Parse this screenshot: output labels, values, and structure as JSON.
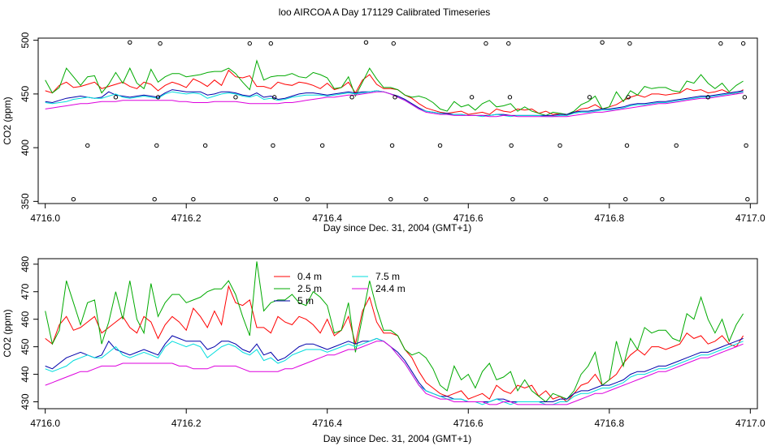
{
  "figure": {
    "title": "loo AIRCOA A  Day 171129  Calibrated Timeseries"
  },
  "chart_data": [
    {
      "type": "scatter",
      "title": "",
      "xlabel": "Day since Dec. 31, 2004 (GMT+1)",
      "ylabel": "CO2 (ppm)",
      "xlim": [
        4715.99,
        4717.01
      ],
      "ylim": [
        348,
        502
      ],
      "xticks": [
        "4716.0",
        "4716.2",
        "4716.4",
        "4716.6",
        "4716.8",
        "4717.0"
      ],
      "yticks": [
        "350",
        "400",
        "450",
        "500"
      ],
      "x": [
        4716.0,
        4716.01,
        4716.02,
        4716.03,
        4716.04,
        4716.05,
        4716.06,
        4716.07,
        4716.08,
        4716.09,
        4716.1,
        4716.11,
        4716.12,
        4716.13,
        4716.14,
        4716.15,
        4716.16,
        4716.17,
        4716.18,
        4716.19,
        4716.2,
        4716.21,
        4716.22,
        4716.23,
        4716.24,
        4716.25,
        4716.26,
        4716.27,
        4716.28,
        4716.29,
        4716.3,
        4716.31,
        4716.32,
        4716.33,
        4716.34,
        4716.35,
        4716.36,
        4716.37,
        4716.38,
        4716.39,
        4716.4,
        4716.41,
        4716.42,
        4716.43,
        4716.44,
        4716.45,
        4716.46,
        4716.47,
        4716.48,
        4716.49,
        4716.5,
        4716.51,
        4716.52,
        4716.53,
        4716.54,
        4716.55,
        4716.56,
        4716.57,
        4716.58,
        4716.59,
        4716.6,
        4716.61,
        4716.62,
        4716.63,
        4716.64,
        4716.65,
        4716.66,
        4716.67,
        4716.68,
        4716.69,
        4716.7,
        4716.71,
        4716.72,
        4716.73,
        4716.74,
        4716.75,
        4716.76,
        4716.77,
        4716.78,
        4716.79,
        4716.8,
        4716.81,
        4716.82,
        4716.83,
        4716.84,
        4716.85,
        4716.86,
        4716.87,
        4716.88,
        4716.89,
        4716.9,
        4716.91,
        4716.92,
        4716.93,
        4716.94,
        4716.95,
        4716.96,
        4716.97,
        4716.98,
        4716.99
      ],
      "series": [
        {
          "name": "",
          "color": "#ff0000",
          "values": [
            453,
            451,
            458,
            461,
            456,
            457,
            459,
            461,
            455,
            457,
            459,
            461,
            457,
            455,
            461,
            459,
            453,
            458,
            461,
            459,
            456,
            464,
            461,
            457,
            463,
            458,
            472,
            466,
            465,
            467,
            457,
            457,
            455,
            461,
            459,
            458,
            461,
            460,
            458,
            455,
            460,
            454,
            456,
            461,
            451,
            463,
            468,
            459,
            455,
            455,
            454,
            449,
            446,
            441,
            437,
            435,
            433,
            432,
            433,
            434,
            431,
            432,
            433,
            431,
            436,
            434,
            433,
            436,
            435,
            436,
            432,
            434,
            431,
            432,
            430,
            433,
            436,
            437,
            440,
            436,
            438,
            440,
            444,
            447,
            449,
            447,
            450,
            450,
            449,
            450,
            451,
            455,
            453,
            454,
            451,
            452,
            454,
            451,
            450,
            454
          ]
        },
        {
          "name": "",
          "color": "#00aa00",
          "values": [
            463,
            451,
            456,
            474,
            466,
            458,
            466,
            467,
            451,
            459,
            470,
            460,
            474,
            460,
            455,
            473,
            461,
            466,
            469,
            469,
            466,
            467,
            468,
            470,
            471,
            471,
            474,
            469,
            461,
            454,
            481,
            463,
            466,
            467,
            467,
            469,
            466,
            465,
            470,
            468,
            465,
            455,
            456,
            466,
            448,
            461,
            474,
            464,
            456,
            456,
            454,
            449,
            447,
            448,
            446,
            442,
            436,
            434,
            443,
            438,
            440,
            435,
            441,
            444,
            438,
            439,
            441,
            434,
            438,
            434,
            432,
            430,
            433,
            432,
            431,
            434,
            440,
            443,
            448,
            436,
            438,
            452,
            443,
            453,
            449,
            457,
            455,
            456,
            456,
            453,
            452,
            462,
            460,
            468,
            460,
            455,
            460,
            452,
            458,
            462
          ]
        },
        {
          "name": "",
          "color": "#0000aa",
          "values": [
            443,
            442,
            444,
            446,
            447,
            448,
            447,
            446,
            447,
            452,
            449,
            448,
            447,
            448,
            449,
            448,
            447,
            451,
            454,
            453,
            452,
            452,
            452,
            449,
            450,
            452,
            452,
            451,
            449,
            448,
            451,
            447,
            448,
            445,
            446,
            448,
            450,
            451,
            451,
            450,
            449,
            450,
            451,
            452,
            451,
            452,
            452,
            453,
            452,
            450,
            448,
            445,
            441,
            437,
            434,
            433,
            432,
            432,
            431,
            431,
            430,
            430,
            430,
            430,
            431,
            431,
            430,
            430,
            430,
            430,
            430,
            430,
            430,
            431,
            431,
            433,
            434,
            434,
            435,
            436,
            436,
            437,
            438,
            440,
            441,
            441,
            442,
            443,
            443,
            444,
            445,
            446,
            447,
            448,
            448,
            449,
            450,
            451,
            452,
            453
          ]
        },
        {
          "name": "",
          "color": "#00dddd",
          "values": [
            442,
            441,
            442,
            443,
            445,
            446,
            447,
            446,
            446,
            448,
            450,
            447,
            446,
            447,
            448,
            447,
            446,
            450,
            452,
            451,
            450,
            451,
            450,
            446,
            448,
            450,
            451,
            450,
            448,
            447,
            449,
            445,
            446,
            444,
            445,
            447,
            448,
            449,
            449,
            449,
            448,
            449,
            450,
            451,
            450,
            451,
            452,
            453,
            452,
            450,
            447,
            444,
            440,
            436,
            434,
            433,
            432,
            431,
            431,
            431,
            430,
            430,
            429,
            430,
            431,
            430,
            429,
            430,
            430,
            430,
            430,
            429,
            429,
            430,
            430,
            432,
            433,
            433,
            434,
            435,
            435,
            436,
            437,
            439,
            440,
            440,
            441,
            442,
            442,
            443,
            444,
            445,
            446,
            447,
            447,
            448,
            449,
            450,
            451,
            452
          ]
        },
        {
          "name": "",
          "color": "#dd00dd",
          "values": [
            436,
            437,
            438,
            439,
            440,
            441,
            441,
            442,
            443,
            443,
            443,
            444,
            444,
            444,
            444,
            444,
            444,
            444,
            444,
            443,
            443,
            442,
            442,
            442,
            443,
            443,
            443,
            443,
            442,
            441,
            441,
            441,
            441,
            441,
            442,
            442,
            443,
            444,
            445,
            446,
            447,
            447,
            448,
            449,
            449,
            450,
            451,
            452,
            452,
            450,
            447,
            444,
            440,
            436,
            433,
            432,
            431,
            431,
            430,
            430,
            430,
            430,
            430,
            429,
            429,
            430,
            430,
            429,
            429,
            429,
            429,
            429,
            429,
            429,
            429,
            430,
            431,
            432,
            433,
            433,
            434,
            435,
            436,
            437,
            438,
            439,
            440,
            441,
            441,
            442,
            443,
            444,
            445,
            446,
            446,
            447,
            448,
            449,
            450,
            451
          ]
        }
      ],
      "points": [
        {
          "x": 4716.04,
          "y": 352
        },
        {
          "x": 4716.06,
          "y": 402
        },
        {
          "x": 4716.1,
          "y": 447
        },
        {
          "x": 4716.12,
          "y": 498
        },
        {
          "x": 4716.155,
          "y": 352
        },
        {
          "x": 4716.158,
          "y": 402
        },
        {
          "x": 4716.16,
          "y": 447
        },
        {
          "x": 4716.163,
          "y": 497
        },
        {
          "x": 4716.21,
          "y": 352
        },
        {
          "x": 4716.227,
          "y": 402
        },
        {
          "x": 4716.27,
          "y": 447
        },
        {
          "x": 4716.29,
          "y": 497
        },
        {
          "x": 4716.32,
          "y": 497
        },
        {
          "x": 4716.323,
          "y": 402
        },
        {
          "x": 4716.325,
          "y": 447
        },
        {
          "x": 4716.327,
          "y": 352
        },
        {
          "x": 4716.372,
          "y": 352
        },
        {
          "x": 4716.393,
          "y": 402
        },
        {
          "x": 4716.435,
          "y": 447
        },
        {
          "x": 4716.455,
          "y": 498
        },
        {
          "x": 4716.49,
          "y": 352
        },
        {
          "x": 4716.492,
          "y": 402
        },
        {
          "x": 4716.494,
          "y": 497
        },
        {
          "x": 4716.496,
          "y": 447
        },
        {
          "x": 4716.54,
          "y": 352
        },
        {
          "x": 4716.56,
          "y": 402
        },
        {
          "x": 4716.605,
          "y": 447
        },
        {
          "x": 4716.625,
          "y": 497
        },
        {
          "x": 4716.657,
          "y": 497
        },
        {
          "x": 4716.659,
          "y": 447
        },
        {
          "x": 4716.661,
          "y": 402
        },
        {
          "x": 4716.663,
          "y": 352
        },
        {
          "x": 4716.71,
          "y": 352
        },
        {
          "x": 4716.73,
          "y": 402
        },
        {
          "x": 4716.772,
          "y": 447
        },
        {
          "x": 4716.79,
          "y": 498
        },
        {
          "x": 4716.823,
          "y": 352
        },
        {
          "x": 4716.825,
          "y": 402
        },
        {
          "x": 4716.827,
          "y": 447
        },
        {
          "x": 4716.829,
          "y": 497
        },
        {
          "x": 4716.875,
          "y": 352
        },
        {
          "x": 4716.895,
          "y": 402
        },
        {
          "x": 4716.94,
          "y": 447
        },
        {
          "x": 4716.958,
          "y": 497
        },
        {
          "x": 4716.99,
          "y": 497
        },
        {
          "x": 4716.992,
          "y": 447
        },
        {
          "x": 4716.994,
          "y": 402
        },
        {
          "x": 4716.996,
          "y": 352
        }
      ]
    },
    {
      "type": "line",
      "title": "",
      "xlabel": "Day since Dec. 31, 2004 (GMT+1)",
      "ylabel": "CO2 (ppm)",
      "xlim": [
        4715.99,
        4717.01
      ],
      "ylim": [
        427.5,
        482
      ],
      "xticks": [
        "4716.0",
        "4716.2",
        "4716.4",
        "4716.6",
        "4716.8",
        "4717.0"
      ],
      "yticks": [
        "430",
        "440",
        "450",
        "460",
        "470",
        "480"
      ],
      "legend": "top-left",
      "series_ref": 0,
      "series_names": [
        "0.4 m",
        "2.5 m",
        "5 m",
        "7.5 m",
        "24.4 m"
      ]
    }
  ]
}
